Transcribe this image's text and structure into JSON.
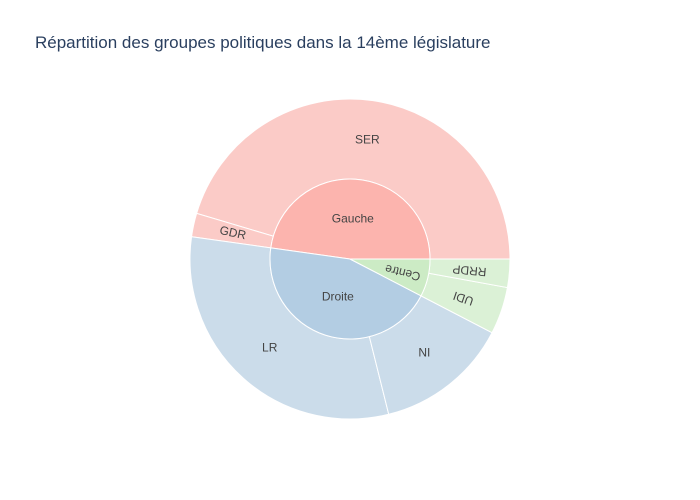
{
  "chart_data": {
    "type": "sunburst",
    "title": "Répartition des groupes politiques dans la 14ème législature",
    "groups": [
      {
        "name": "Gauche",
        "color": "#fcb4ae",
        "children": [
          {
            "name": "SER",
            "value": 286,
            "color": "#fbcbc7"
          },
          {
            "name": "GDR",
            "value": 15,
            "color": "#fbcbc7"
          }
        ]
      },
      {
        "name": "Droite",
        "color": "#b3cde3",
        "children": [
          {
            "name": "LR",
            "value": 196,
            "color": "#cbdcea"
          },
          {
            "name": "NI",
            "value": 85,
            "color": "#cbdcea"
          }
        ]
      },
      {
        "name": "Centre",
        "color": "#ccebc5",
        "children": [
          {
            "name": "UDI",
            "value": 30,
            "color": "#dbf1d6"
          },
          {
            "name": "RRDP",
            "value": 18,
            "color": "#dbf1d6"
          }
        ]
      }
    ]
  }
}
